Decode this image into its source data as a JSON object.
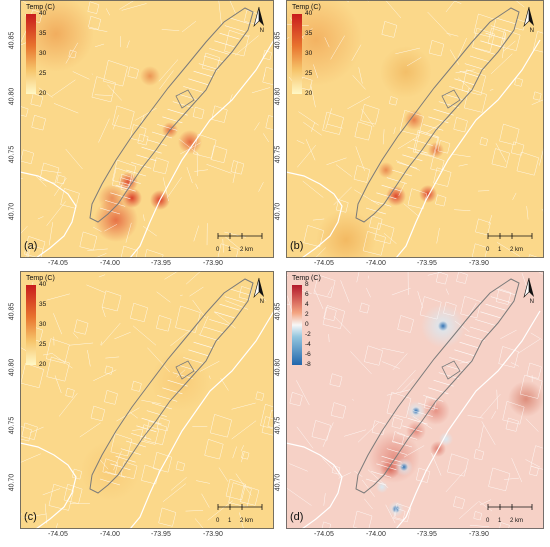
{
  "colors": {
    "temp_background": "#fbd88a",
    "temp_low": "#fff8c6",
    "temp_high": "#c81c1c",
    "diff_background": "#f6d1c6",
    "diff_low": "#2166ac",
    "diff_high": "#b2182b",
    "streets": "#ffffff",
    "coastline": "#7a7a7a"
  },
  "x_ticks": [
    "-74.05",
    "-74.00",
    "-73.95",
    "-73.90"
  ],
  "y_ticks": [
    "40.85",
    "40.80",
    "40.75",
    "40.70"
  ],
  "north_label": "N",
  "scale": {
    "labels": [
      "0",
      "1",
      "2 km"
    ]
  },
  "panels": [
    {
      "letter": "(a)",
      "legend_title": "Temp (C)",
      "legend_ticks": [
        "40",
        "35",
        "30",
        "25",
        "20"
      ],
      "palette": "temperature"
    },
    {
      "letter": "(b)",
      "legend_title": "Temp (C)",
      "legend_ticks": [
        "40",
        "35",
        "30",
        "25",
        "20"
      ],
      "palette": "temperature"
    },
    {
      "letter": "(c)",
      "legend_title": "Temp (C)",
      "legend_ticks": [
        "40",
        "35",
        "30",
        "25",
        "20"
      ],
      "palette": "temperature"
    },
    {
      "letter": "(d)",
      "legend_title": "Temp (C)",
      "legend_ticks": [
        "8",
        "6",
        "4",
        "2",
        "0",
        "-2",
        "-4",
        "-6",
        "-8"
      ],
      "palette": "difference"
    }
  ]
}
